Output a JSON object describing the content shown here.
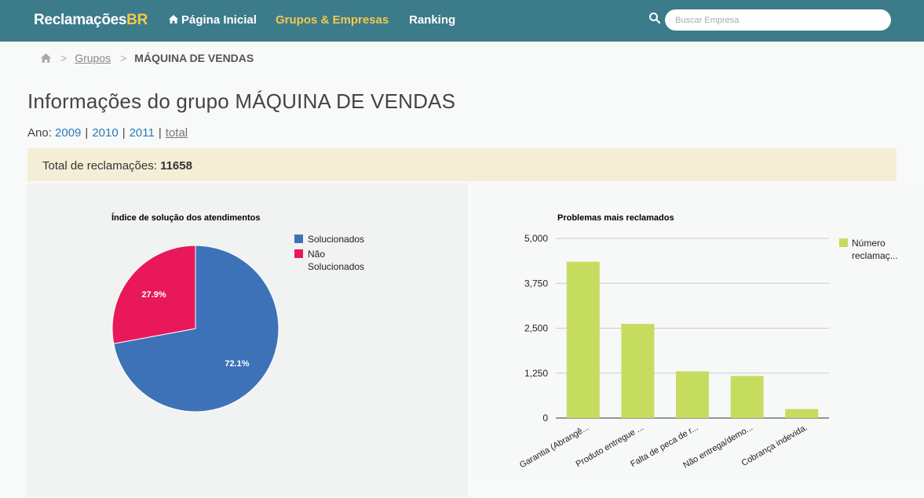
{
  "navbar": {
    "brand_main": "Reclamações",
    "brand_accent": "BR",
    "items": [
      {
        "label": "Página Inicial",
        "icon": "home-icon"
      },
      {
        "label": "Grupos & Empresas",
        "active": true
      },
      {
        "label": "Ranking"
      }
    ],
    "search": {
      "placeholder": "Buscar Empresa",
      "icon": "search-icon"
    },
    "colors": {
      "bar": "#3b7b8a",
      "active": "#f2c94c"
    }
  },
  "breadcrumb": {
    "home_icon": "home-icon",
    "separator": ">",
    "link": "Grupos",
    "current": "MÁQUINA DE VENDAS"
  },
  "page_title": "Informações do grupo MÁQUINA DE VENDAS",
  "year_filter": {
    "label": "Ano:",
    "years": [
      "2009",
      "2010",
      "2011"
    ],
    "total": "total",
    "separator": "|"
  },
  "summary": {
    "label": "Total de reclamações:",
    "value": "11658"
  },
  "chart_data": [
    {
      "type": "pie",
      "title": "Índice de solução dos atendimentos",
      "legend_position": "right",
      "slices": [
        {
          "name": "Solucionados",
          "value": 72.1,
          "label": "72.1%",
          "color": "#3d72b8"
        },
        {
          "name": "Não Solucionados",
          "value": 27.9,
          "label": "27.9%",
          "color": "#e9185a"
        }
      ],
      "legend_lines": [
        [
          "Solucionados"
        ],
        [
          "Não",
          "Solucionados"
        ]
      ]
    },
    {
      "type": "bar",
      "title": "Problemas mais reclamados",
      "legend_position": "right",
      "series": [
        {
          "name": "Número reclamaç...",
          "legend_lines": [
            "Número",
            "reclamaç..."
          ],
          "color": "#c6dc5e"
        }
      ],
      "categories": [
        "Garantia (Abrangê...",
        "Produto entregue ...",
        "Falta de peca de r...",
        "Não entrega/demo...",
        "Cobrança indevida."
      ],
      "values": [
        4350,
        2620,
        1300,
        1170,
        250
      ],
      "ylim": [
        0,
        5000
      ],
      "yticks": [
        0,
        1250,
        2500,
        3750,
        5000
      ],
      "ytick_labels": [
        "0",
        "1,250",
        "2,500",
        "3,750",
        "5,000"
      ],
      "grid": true
    }
  ]
}
